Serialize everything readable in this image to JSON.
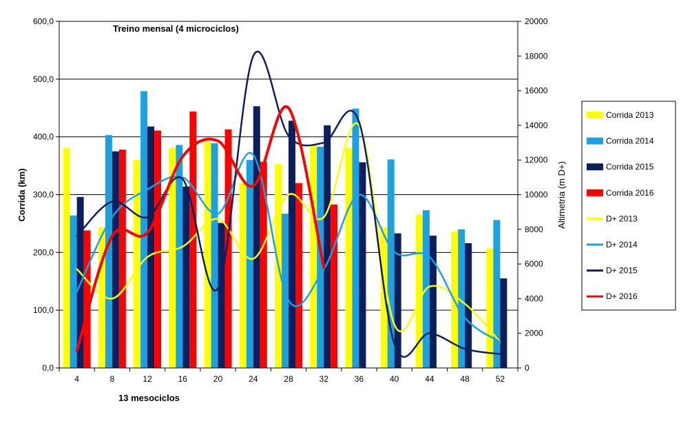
{
  "chart_data": {
    "type": "bar",
    "title": "Treino mensal (4 microciclos)",
    "xlabel": "13 mesociclos",
    "ylabel": "Corrida (km)",
    "y2label": "Altimetria (m D+)",
    "ylim": [
      0,
      600
    ],
    "y2lim": [
      0,
      20000
    ],
    "yticks": [
      "0,0",
      "100,0",
      "200,0",
      "300,0",
      "400,0",
      "500,0",
      "600,0"
    ],
    "y2ticks": [
      "0",
      "2000",
      "4000",
      "6000",
      "8000",
      "10000",
      "12000",
      "14000",
      "16000",
      "18000",
      "20000"
    ],
    "grid": true,
    "legend_position": "right",
    "categories": [
      "4",
      "8",
      "12",
      "16",
      "20",
      "24",
      "28",
      "32",
      "36",
      "40",
      "44",
      "48",
      "52"
    ],
    "bar_series": [
      {
        "name": "Corrida 2013",
        "color": "#ffff00",
        "values": [
          381,
          243,
          360,
          381,
          392,
          320,
          353,
          387,
          381,
          244,
          266,
          236,
          207
        ]
      },
      {
        "name": "Corrida 2014",
        "color": "#1ba1e2",
        "values": [
          264,
          403,
          479,
          386,
          389,
          360,
          267,
          383,
          449,
          361,
          273,
          240,
          256
        ]
      },
      {
        "name": "Corrida 2015",
        "color": "#0b1f5c",
        "values": [
          296,
          375,
          418,
          314,
          251,
          453,
          428,
          420,
          356,
          233,
          229,
          216,
          155
        ]
      },
      {
        "name": "Corrida 2016",
        "color": "#ff0000",
        "values": [
          238,
          378,
          411,
          444,
          413,
          357,
          320,
          283,
          null,
          null,
          null,
          null,
          null
        ]
      }
    ],
    "line_series": [
      {
        "name": "D+ 2013",
        "color": "#ffff00",
        "values": [
          5700,
          4000,
          6400,
          7000,
          8600,
          6300,
          10000,
          8700,
          14000,
          2500,
          4700,
          3700,
          1500
        ]
      },
      {
        "name": "D+ 2014",
        "color": "#1ba1e2",
        "values": [
          4400,
          8700,
          10300,
          11000,
          8900,
          12300,
          3900,
          5700,
          10000,
          6700,
          6400,
          2900,
          1500
        ]
      },
      {
        "name": "D+ 2015",
        "color": "#0b1f5c",
        "values": [
          7600,
          9600,
          8700,
          10900,
          4600,
          18000,
          13400,
          13000,
          14200,
          1400,
          2000,
          1100,
          800
        ]
      },
      {
        "name": "D+ 2016",
        "color": "#ff0000",
        "values": [
          1000,
          7600,
          7800,
          12200,
          13100,
          10500,
          15000,
          5800,
          null,
          null,
          null,
          null,
          null
        ]
      }
    ]
  }
}
